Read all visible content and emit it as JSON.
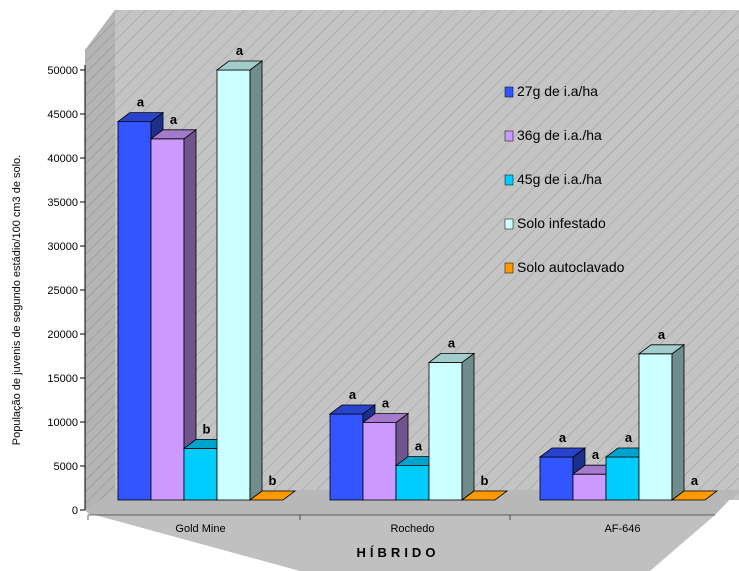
{
  "chart_data": {
    "type": "bar",
    "ylabel": "População de juvenis de segundo estádio/100 cm3 de solo.",
    "xlabel": "HÍBRIDO",
    "ylim": [
      0,
      50000
    ],
    "yticks": [
      "0",
      "5000",
      "10000",
      "15000",
      "20000",
      "25000",
      "30000",
      "35000",
      "40000",
      "45000",
      "50000"
    ],
    "categories": [
      "Gold Mine",
      "Rochedo",
      "AF-646"
    ],
    "legend_position": "right",
    "series": [
      {
        "name": "27g de i.a/ha",
        "color": "#3355ff",
        "values": [
          44000,
          10000,
          5000
        ],
        "labels": [
          "a",
          "a",
          "a"
        ]
      },
      {
        "name": "36g de i.a./ha",
        "color": "#cc99ff",
        "values": [
          42000,
          9000,
          3000
        ],
        "labels": [
          "a",
          "a",
          "a"
        ]
      },
      {
        "name": "45g de i.a./ha",
        "color": "#00ccff",
        "values": [
          6000,
          4000,
          5000
        ],
        "labels": [
          "b",
          "a",
          "a"
        ]
      },
      {
        "name": "Solo infestado",
        "color": "#ccffff",
        "values": [
          50000,
          16000,
          17000
        ],
        "labels": [
          "a",
          "a",
          "a"
        ]
      },
      {
        "name": "Solo autoclavado",
        "color": "#ff9900",
        "values": [
          0,
          0,
          0
        ],
        "labels": [
          "b",
          "b",
          "a"
        ]
      }
    ]
  }
}
